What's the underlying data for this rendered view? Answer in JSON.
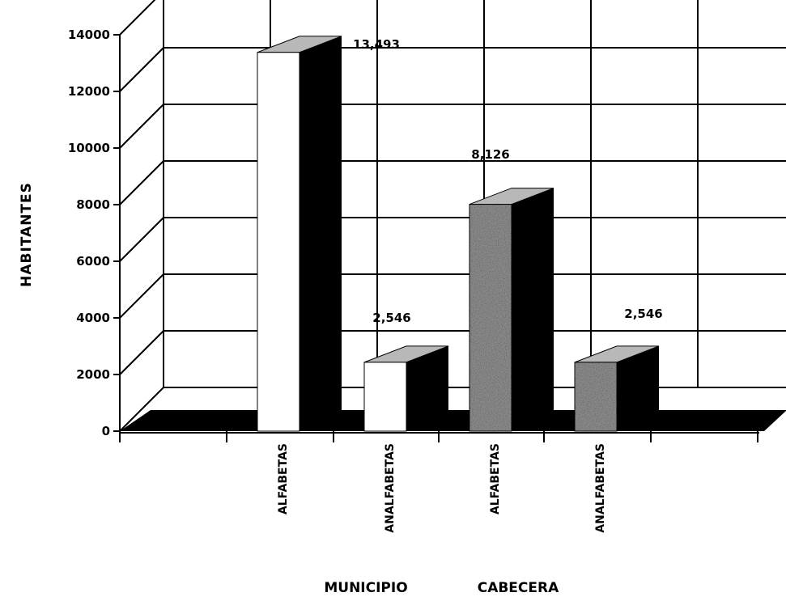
{
  "chart_data": {
    "type": "bar",
    "title": "",
    "ylabel": "HABITANTES",
    "ylim": [
      0,
      14000
    ],
    "yticks": [
      0,
      2000,
      4000,
      6000,
      8000,
      10000,
      12000,
      14000
    ],
    "ytick_labels": [
      "0",
      "2000",
      "4000",
      "6000",
      "8000",
      "10000",
      "12000",
      "14000"
    ],
    "grid": true,
    "categories": [
      "ALFABETAS",
      "ANALFABETAS",
      "ALFABETAS",
      "ANALFABETAS"
    ],
    "groups": [
      "MUNICIPIO",
      "CABECERA"
    ],
    "values": [
      13493,
      2546,
      8126,
      2546
    ],
    "data_labels": [
      "13,493",
      "2,546",
      "8,126",
      "2,546"
    ],
    "colors": {
      "municipio_front": "#ffffff",
      "cabecera_front": "#8a8a8a",
      "bar_side": "#000000",
      "top_speckle": "#b8b8b8",
      "floor": "#000000",
      "grid": "#000000"
    }
  }
}
